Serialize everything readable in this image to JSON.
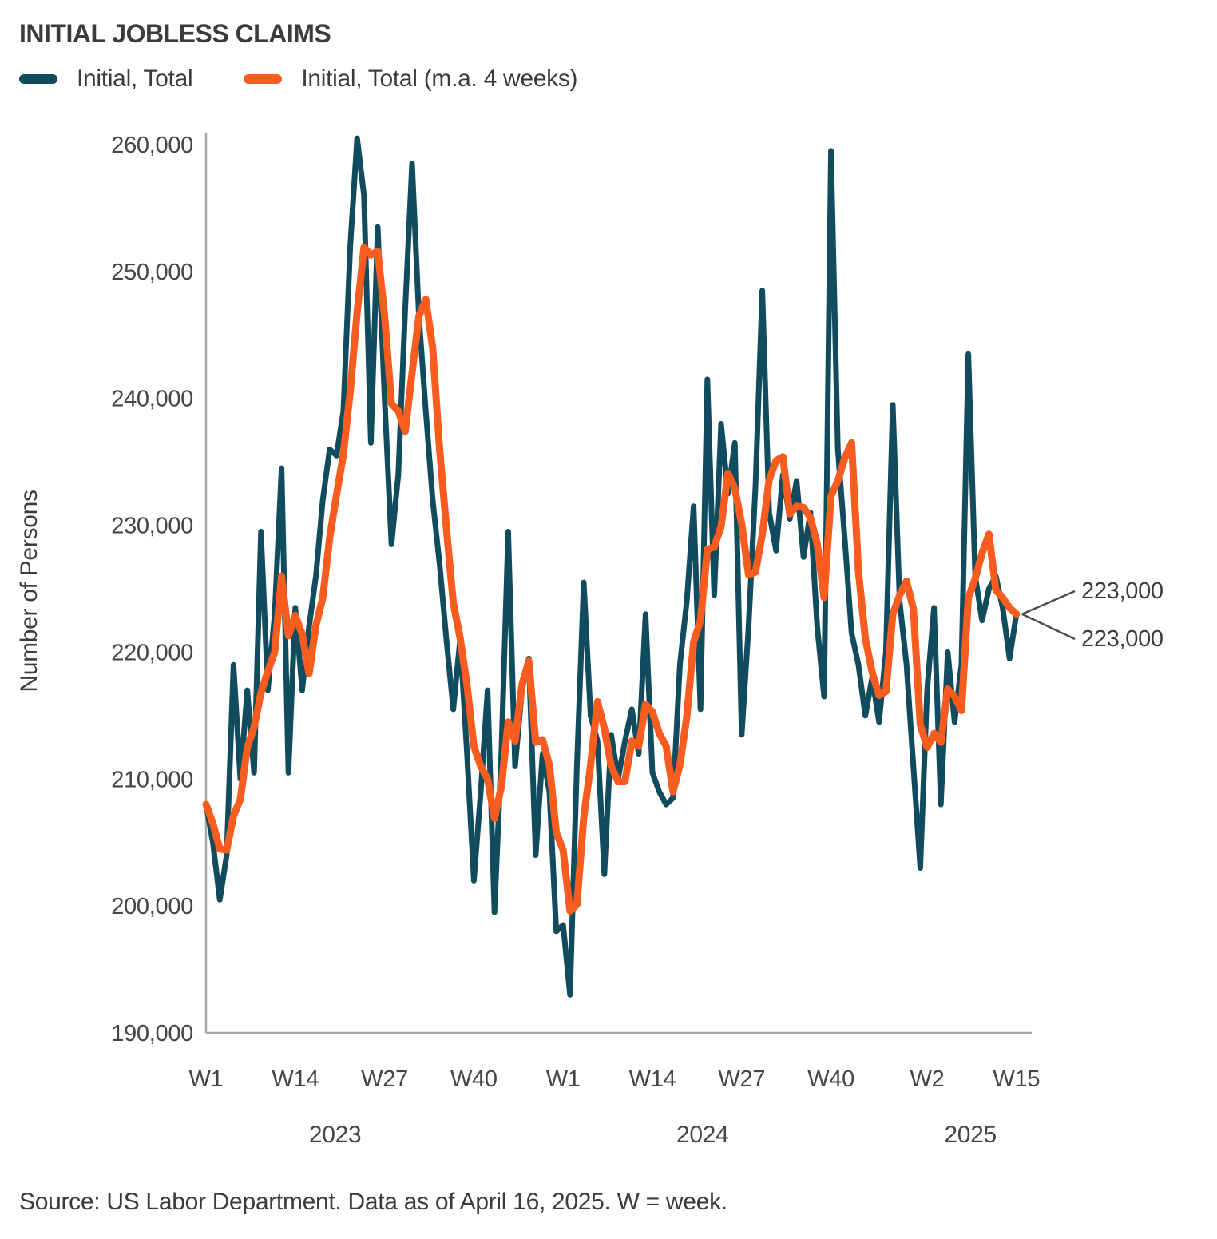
{
  "title": "INITIAL JOBLESS CLAIMS",
  "legend": [
    {
      "label": "Initial, Total",
      "color": "#104b5e"
    },
    {
      "label": "Initial, Total (m.a. 4 weeks)",
      "color": "#f85c1f"
    }
  ],
  "y_axis": {
    "label": "Number of Persons",
    "ticks": [
      {
        "label": "260,000",
        "value": 260000
      },
      {
        "label": "250,000",
        "value": 250000
      },
      {
        "label": "240,000",
        "value": 240000
      },
      {
        "label": "230,000",
        "value": 230000
      },
      {
        "label": "220,000",
        "value": 220000
      },
      {
        "label": "210,000",
        "value": 210000
      },
      {
        "label": "200,000",
        "value": 200000
      },
      {
        "label": "190,000",
        "value": 190000
      }
    ]
  },
  "x_axis": {
    "ticks": [
      {
        "label": "W1",
        "index": 0
      },
      {
        "label": "W14",
        "index": 13
      },
      {
        "label": "W27",
        "index": 26
      },
      {
        "label": "W40",
        "index": 39
      },
      {
        "label": "W1",
        "index": 52
      },
      {
        "label": "W14",
        "index": 65
      },
      {
        "label": "W27",
        "index": 78
      },
      {
        "label": "W40",
        "index": 91
      },
      {
        "label": "W2",
        "index": 105
      },
      {
        "label": "W15",
        "index": 118
      }
    ],
    "year_labels": [
      {
        "label": "2023",
        "index": 18.8
      },
      {
        "label": "2024",
        "index": 72.3
      },
      {
        "label": "2025",
        "index": 111.3
      }
    ]
  },
  "annotations": [
    {
      "label": "223,000",
      "value": 223000,
      "series": "Initial, Total (m.a. 4 weeks)"
    },
    {
      "label": "223,000",
      "value": 223000,
      "series": "Initial, Total"
    }
  ],
  "source_note": "Source: US Labor Department. Data as of April 16, 2025. W = week.",
  "chart_data": {
    "type": "line",
    "title": "INITIAL JOBLESS CLAIMS",
    "ylabel": "Number of Persons",
    "xlabel": "",
    "ylim": [
      190000,
      260000
    ],
    "grid": false,
    "legend_position": "top-left",
    "x_unit": "week",
    "x_start": "2023 W1",
    "x_end": "2025 W15",
    "n_points": 119,
    "x_tick_labels": [
      "W1",
      "W14",
      "W27",
      "W40",
      "W1",
      "W14",
      "W27",
      "W40",
      "W2",
      "W15"
    ],
    "x_tick_indices": [
      0,
      13,
      26,
      39,
      52,
      65,
      78,
      91,
      105,
      118
    ],
    "year_groups": [
      {
        "year": "2023",
        "n_weeks": 52
      },
      {
        "year": "2024",
        "n_weeks": 52
      },
      {
        "year": "2025",
        "n_weeks": 15
      }
    ],
    "series": [
      {
        "name": "Initial, Total",
        "color": "#104b5e",
        "values": [
          208000,
          205000,
          200500,
          204000,
          219000,
          210000,
          217000,
          210500,
          229500,
          217000,
          223000,
          234500,
          210500,
          223500,
          217000,
          222000,
          226000,
          232000,
          236000,
          235500,
          239000,
          252000,
          260500,
          256000,
          236500,
          253500,
          240000,
          228500,
          234000,
          247000,
          258500,
          246500,
          239000,
          232000,
          227000,
          221000,
          215500,
          221000,
          212000,
          202000,
          209000,
          217000,
          199500,
          212000,
          229500,
          211000,
          217000,
          219500,
          204000,
          212000,
          209000,
          198000,
          198500,
          193000,
          211000,
          225500,
          215000,
          213000,
          202500,
          213500,
          210000,
          213000,
          215500,
          212000,
          223000,
          210500,
          209000,
          208000,
          208500,
          219000,
          224000,
          231500,
          215500,
          241500,
          224500,
          238000,
          232500,
          236500,
          213500,
          222000,
          233000,
          248500,
          231000,
          228000,
          234000,
          230500,
          233500,
          227500,
          231000,
          222000,
          216500,
          259500,
          236000,
          229000,
          221500,
          219000,
          215000,
          218000,
          214500,
          220000,
          239500,
          224000,
          219000,
          211000,
          203000,
          217000,
          223500,
          208000,
          220000,
          214500,
          219000,
          243500,
          226000,
          222500,
          225000,
          226000,
          223500,
          219500,
          223000
        ]
      },
      {
        "name": "Initial, Total (m.a. 4 weeks)",
        "color": "#f85c1f",
        "values": [
          208000,
          206500,
          204500,
          204400,
          207100,
          208400,
          212500,
          214100,
          216800,
          218500,
          220000,
          226000,
          221300,
          222900,
          221400,
          218300,
          222100,
          224300,
          229000,
          232400,
          235600,
          240600,
          246800,
          251900,
          251300,
          251600,
          246500,
          239600,
          239000,
          237400,
          242000,
          246500,
          247800,
          244000,
          236100,
          229800,
          223900,
          221100,
          217400,
          212600,
          211000,
          210000,
          206900,
          209400,
          214500,
          213000,
          217400,
          219300,
          212900,
          213100,
          211100,
          205800,
          204400,
          199600,
          200100,
          207000,
          211100,
          216100,
          214000,
          211000,
          209800,
          209800,
          213000,
          212600,
          215900,
          215300,
          213600,
          212600,
          209000,
          211100,
          214900,
          220800,
          222500,
          228100,
          228300,
          229900,
          234100,
          232900,
          230100,
          226100,
          226300,
          229300,
          233600,
          235100,
          235400,
          230900,
          231500,
          231400,
          230600,
          228500,
          224300,
          232300,
          233500,
          235300,
          236500,
          226400,
          221100,
          218400,
          216600,
          216900,
          223000,
          224500,
          225600,
          223400,
          214300,
          212500,
          213600,
          212900,
          217100,
          216500,
          215400,
          224300,
          225800,
          227800,
          229300,
          224900,
          224300,
          223500,
          223000
        ]
      }
    ]
  }
}
